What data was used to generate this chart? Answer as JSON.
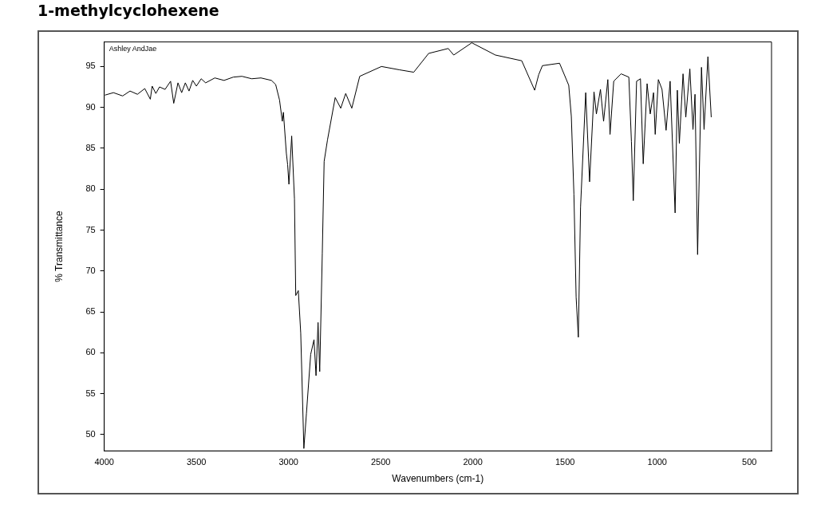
{
  "chart_data": {
    "type": "line",
    "title": "1-methylcyclohexene",
    "xlabel": "Wavenumbers (cm-1)",
    "ylabel": "% Transmittance",
    "annotations": [
      "Ashley AndJae"
    ],
    "xlim": [
      4000,
      380
    ],
    "ylim": [
      48,
      98
    ],
    "xticks": [
      4000,
      3500,
      3000,
      2500,
      2000,
      1500,
      1000,
      500
    ],
    "yticks": [
      50,
      55,
      60,
      65,
      70,
      75,
      80,
      85,
      90,
      95
    ],
    "grid": false,
    "legend": false,
    "marker": "none",
    "line_style": "solid",
    "series": [
      {
        "color": "#000000",
        "x": [
          3996,
          3950,
          3900,
          3860,
          3820,
          3780,
          3750,
          3740,
          3720,
          3700,
          3670,
          3640,
          3623,
          3600,
          3580,
          3560,
          3540,
          3520,
          3500,
          3474,
          3450,
          3400,
          3350,
          3300,
          3253,
          3200,
          3150,
          3093,
          3070,
          3049,
          3034,
          3028,
          3012,
          3005,
          2998,
          2983,
          2968,
          2961,
          2947,
          2934,
          2917,
          2903,
          2880,
          2862,
          2851,
          2840,
          2831,
          2817,
          2807,
          2789,
          2747,
          2717,
          2690,
          2657,
          2614,
          2496,
          2400,
          2321,
          2240,
          2134,
          2104,
          2006,
          1878,
          1735,
          1665,
          1643,
          1623,
          1530,
          1480,
          1466,
          1452,
          1440,
          1428,
          1416,
          1388,
          1367,
          1343,
          1330,
          1308,
          1291,
          1268,
          1256,
          1236,
          1196,
          1154,
          1140,
          1130,
          1112,
          1091,
          1076,
          1055,
          1038,
          1020,
          1011,
          994,
          974,
          952,
          930,
          903,
          891,
          880,
          860,
          845,
          823,
          806,
          795,
          781,
          760,
          746,
          725,
          707
        ],
        "values": [
          91.5,
          91.8,
          91.4,
          92.0,
          91.6,
          92.3,
          91.0,
          92.6,
          91.7,
          92.5,
          92.2,
          93.2,
          90.5,
          93.0,
          91.8,
          93.0,
          92.0,
          93.3,
          92.6,
          93.5,
          93.0,
          93.6,
          93.3,
          93.7,
          93.8,
          93.5,
          93.6,
          93.3,
          92.8,
          90.9,
          88.3,
          89.4,
          84.4,
          83.0,
          80.6,
          86.5,
          78.8,
          67.0,
          67.6,
          62.4,
          48.3,
          52.6,
          59.8,
          61.6,
          57.2,
          63.7,
          57.7,
          72.2,
          83.4,
          86.0,
          91.2,
          89.9,
          91.7,
          89.9,
          93.8,
          95.0,
          94.6,
          94.3,
          96.6,
          97.2,
          96.4,
          97.9,
          96.4,
          95.7,
          92.1,
          94.0,
          95.1,
          95.4,
          92.7,
          88.9,
          79.4,
          66.8,
          61.9,
          77.8,
          91.8,
          80.9,
          91.9,
          89.2,
          92.2,
          88.3,
          93.4,
          86.7,
          93.2,
          94.1,
          93.7,
          85.8,
          78.6,
          93.2,
          93.5,
          83.1,
          92.9,
          89.2,
          91.8,
          86.7,
          93.4,
          92.2,
          87.2,
          93.2,
          77.1,
          92.1,
          85.6,
          94.1,
          88.8,
          94.7,
          87.3,
          91.6,
          72.0,
          94.9,
          87.3,
          96.2,
          88.8
        ]
      }
    ]
  }
}
